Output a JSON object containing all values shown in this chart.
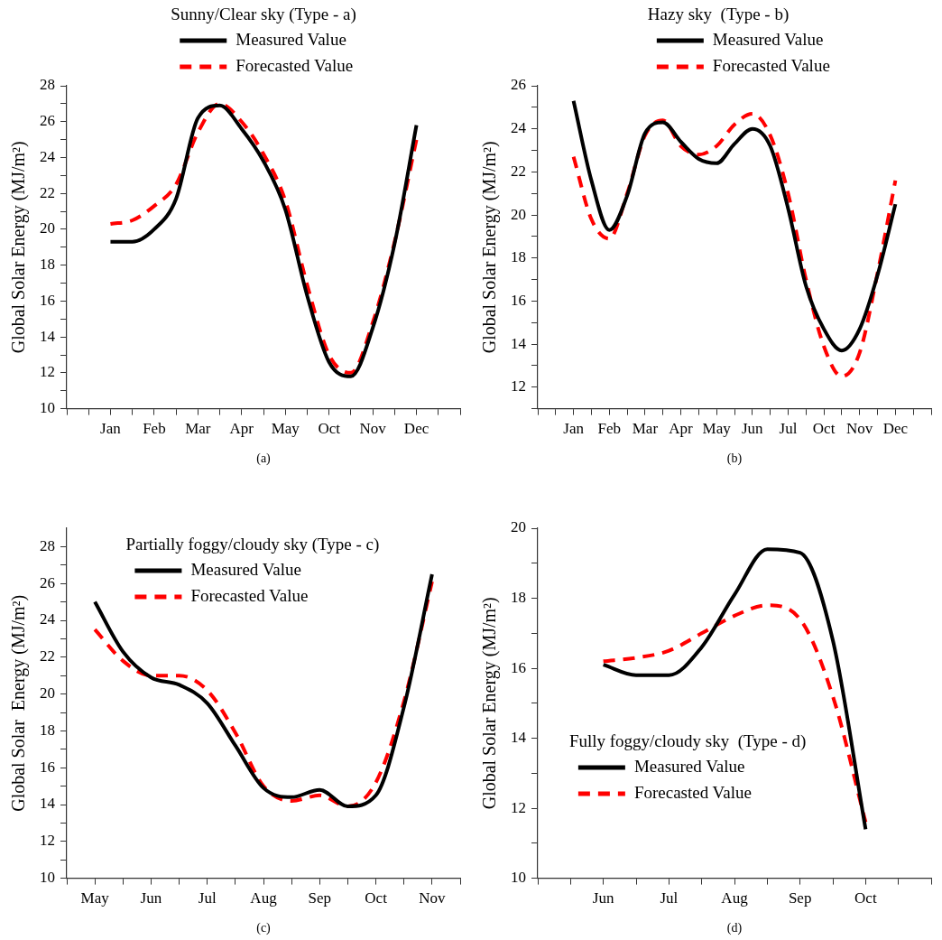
{
  "chart_data": [
    {
      "type": "line",
      "title": "Sunny/Clear sky (Type - a)",
      "ylabel": "Global Solar Energy (MJ/m²)",
      "annotations": [
        "(a)"
      ],
      "legend": "top",
      "grid": false,
      "categories": [
        null,
        null,
        "Jan",
        null,
        "Feb",
        null,
        "Mar",
        null,
        "Apr",
        null,
        "May",
        null,
        "Oct",
        null,
        "Nov",
        null,
        "Dec",
        null,
        null
      ],
      "ylim": [
        10,
        28
      ],
      "yticks": [
        10,
        {
          "value": 11,
          "label": null
        },
        12,
        {
          "value": 13,
          "label": null
        },
        14,
        {
          "value": 15,
          "label": null
        },
        16,
        {
          "value": 17,
          "label": null
        },
        18,
        {
          "value": 19,
          "label": null
        },
        20,
        {
          "value": 21,
          "label": null
        },
        22,
        {
          "value": 23,
          "label": null
        },
        24,
        {
          "value": 25,
          "label": null
        },
        26,
        {
          "value": 27,
          "label": null
        },
        28
      ],
      "series": [
        {
          "name": "Measured Value",
          "color": "#000000",
          "line_style": "solid",
          "values": [
            null,
            null,
            19.3,
            19.3,
            20.0,
            21.7,
            26.2,
            26.9,
            25.6,
            23.8,
            21.1,
            16.3,
            12.6,
            11.8,
            14.5,
            19.2,
            25.8,
            null,
            null
          ]
        },
        {
          "name": "Forecasted Value",
          "color": "#ff0000",
          "line_style": "dashed",
          "values": [
            null,
            null,
            20.3,
            20.5,
            21.3,
            22.5,
            25.4,
            27.0,
            26.0,
            24.2,
            21.6,
            16.9,
            13.0,
            12.0,
            14.8,
            19.3,
            25.0,
            null,
            null
          ]
        }
      ]
    },
    {
      "type": "line",
      "title": "Hazy sky  (Type - b)",
      "ylabel": "Global Solar Energy (MJ/m²)",
      "annotations": [
        "(b)"
      ],
      "legend": "top",
      "grid": false,
      "categories": [
        null,
        null,
        "Jan",
        null,
        "Feb",
        null,
        "Mar",
        null,
        "Apr",
        null,
        "May",
        null,
        "Jun",
        null,
        "Jul",
        null,
        "Oct",
        null,
        "Nov",
        null,
        "Dec",
        null,
        null
      ],
      "ylim": [
        11,
        26
      ],
      "yticks": [
        {
          "value": 11,
          "label": null
        },
        12,
        {
          "value": 13,
          "label": null
        },
        14,
        {
          "value": 15,
          "label": null
        },
        16,
        {
          "value": 17,
          "label": null
        },
        18,
        {
          "value": 19,
          "label": null
        },
        20,
        {
          "value": 21,
          "label": null
        },
        22,
        {
          "value": 23,
          "label": null
        },
        24,
        {
          "value": 25,
          "label": null
        },
        26
      ],
      "series": [
        {
          "name": "Measured Value",
          "color": "#000000",
          "line_style": "solid",
          "values": [
            null,
            null,
            25.3,
            21.6,
            19.3,
            20.9,
            23.8,
            24.3,
            23.4,
            22.6,
            22.4,
            23.3,
            24.0,
            23.2,
            20.3,
            16.7,
            14.7,
            13.7,
            14.7,
            17.2,
            20.5,
            null,
            null
          ]
        },
        {
          "name": "Forecasted Value",
          "color": "#ff0000",
          "line_style": "dashed",
          "values": [
            null,
            null,
            22.7,
            19.8,
            18.9,
            21.0,
            23.7,
            24.4,
            23.2,
            22.8,
            23.2,
            24.2,
            24.7,
            23.7,
            21.0,
            17.0,
            13.9,
            12.5,
            13.6,
            17.3,
            21.6,
            null,
            null
          ]
        }
      ]
    },
    {
      "type": "line",
      "title": "Partially foggy/cloudy sky (Type - c)",
      "ylabel": "Global Solar  Energy (MJ/m²)",
      "annotations": [
        "(c)"
      ],
      "legend": "top left",
      "grid": false,
      "categories": [
        null,
        "May",
        null,
        "Jun",
        null,
        "Jul",
        null,
        "Aug",
        null,
        "Sep",
        null,
        "Oct",
        null,
        "Nov",
        null
      ],
      "ylim": [
        10,
        29
      ],
      "yticks": [
        10,
        {
          "value": 11,
          "label": null
        },
        12,
        {
          "value": 13,
          "label": null
        },
        14,
        {
          "value": 15,
          "label": null
        },
        16,
        {
          "value": 17,
          "label": null
        },
        18,
        {
          "value": 19,
          "label": null
        },
        20,
        {
          "value": 21,
          "label": null
        },
        22,
        {
          "value": 23,
          "label": null
        },
        24,
        {
          "value": 25,
          "label": null
        },
        26,
        {
          "value": 27,
          "label": null
        },
        28
      ],
      "series": [
        {
          "name": "Measured Value",
          "color": "#000000",
          "line_style": "solid",
          "values": [
            null,
            25.0,
            22.3,
            20.9,
            20.5,
            19.5,
            17.2,
            14.9,
            14.4,
            14.8,
            13.9,
            14.5,
            19.3,
            26.5,
            null
          ]
        },
        {
          "name": "Forecasted Value",
          "color": "#ff0000",
          "line_style": "dashed",
          "values": [
            null,
            23.5,
            21.8,
            21.0,
            21.0,
            20.2,
            17.9,
            15.0,
            14.2,
            14.5,
            13.9,
            15.2,
            19.6,
            26.1,
            null
          ]
        }
      ]
    },
    {
      "type": "line",
      "title": "Fully foggy/cloudy sky  (Type - d)",
      "ylabel": "Global Solar Energy (MJ/m²)",
      "annotations": [
        "(d)"
      ],
      "legend": "bottom left",
      "grid": false,
      "categories": [
        null,
        null,
        "Jun",
        null,
        "Jul",
        null,
        "Aug",
        null,
        "Sep",
        null,
        "Oct",
        null,
        null
      ],
      "ylim": [
        10,
        20
      ],
      "yticks": [
        10,
        {
          "value": 11,
          "label": null
        },
        12,
        {
          "value": 13,
          "label": null
        },
        14,
        {
          "value": 15,
          "label": null
        },
        16,
        {
          "value": 17,
          "label": null
        },
        18,
        {
          "value": 19,
          "label": null
        },
        20
      ],
      "series": [
        {
          "name": "Measured Value",
          "color": "#000000",
          "line_style": "solid",
          "values": [
            null,
            null,
            16.1,
            15.8,
            15.8,
            16.6,
            18.1,
            19.4,
            19.3,
            16.8,
            11.4,
            null,
            null
          ]
        },
        {
          "name": "Forecasted Value",
          "color": "#ff0000",
          "line_style": "dashed",
          "values": [
            null,
            null,
            16.2,
            16.3,
            16.5,
            17.0,
            17.5,
            17.8,
            17.4,
            15.2,
            11.6,
            null,
            null
          ]
        }
      ]
    }
  ]
}
